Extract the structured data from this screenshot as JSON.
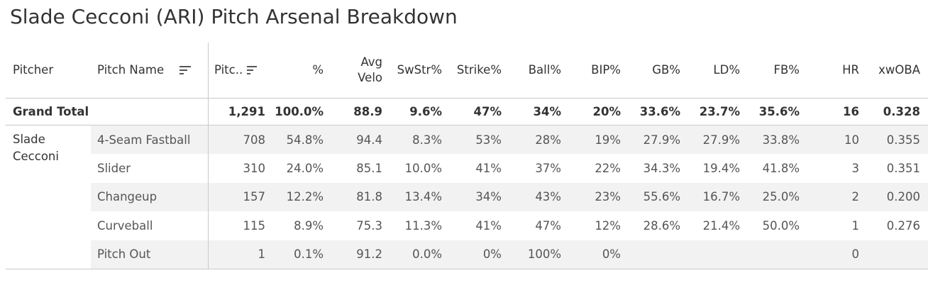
{
  "title": "Slade Cecconi (ARI) Pitch Arsenal Breakdown",
  "colors": {
    "text": "#333333",
    "muted_text": "#555555",
    "row_shade": "#f2f2f2",
    "grid": "#c8c8c8"
  },
  "chart_data": {
    "type": "table",
    "title": "Slade Cecconi (ARI) Pitch Arsenal Breakdown",
    "columns": [
      "Pitcher",
      "Pitch Name",
      "Pitc..",
      "%",
      "Avg Velo",
      "SwStr%",
      "Strike%",
      "Ball%",
      "BIP%",
      "GB%",
      "LD%",
      "FB%",
      "HR",
      "xwOBA"
    ],
    "sort_icons": [
      "Pitch Name",
      "Pitc.."
    ],
    "grand_total": {
      "label": "Grand Total",
      "values": [
        "1,291",
        "100.0%",
        "88.9",
        "9.6%",
        "47%",
        "34%",
        "20%",
        "33.6%",
        "23.7%",
        "35.6%",
        "16",
        "0.328"
      ]
    },
    "pitcher": "Slade Cecconi",
    "rows": [
      {
        "pitch": "4-Seam Fastball",
        "values": [
          "708",
          "54.8%",
          "94.4",
          "8.3%",
          "53%",
          "28%",
          "19%",
          "27.9%",
          "27.9%",
          "33.8%",
          "10",
          "0.355"
        ]
      },
      {
        "pitch": "Slider",
        "values": [
          "310",
          "24.0%",
          "85.1",
          "10.0%",
          "41%",
          "37%",
          "22%",
          "34.3%",
          "19.4%",
          "41.8%",
          "3",
          "0.351"
        ]
      },
      {
        "pitch": "Changeup",
        "values": [
          "157",
          "12.2%",
          "81.8",
          "13.4%",
          "34%",
          "43%",
          "23%",
          "55.6%",
          "16.7%",
          "25.0%",
          "2",
          "0.200"
        ]
      },
      {
        "pitch": "Curveball",
        "values": [
          "115",
          "8.9%",
          "75.3",
          "11.3%",
          "41%",
          "47%",
          "12%",
          "28.6%",
          "21.4%",
          "50.0%",
          "1",
          "0.276"
        ]
      },
      {
        "pitch": "Pitch Out",
        "values": [
          "1",
          "0.1%",
          "91.2",
          "0.0%",
          "0%",
          "100%",
          "0%",
          "",
          "",
          "",
          "0",
          ""
        ]
      }
    ]
  }
}
